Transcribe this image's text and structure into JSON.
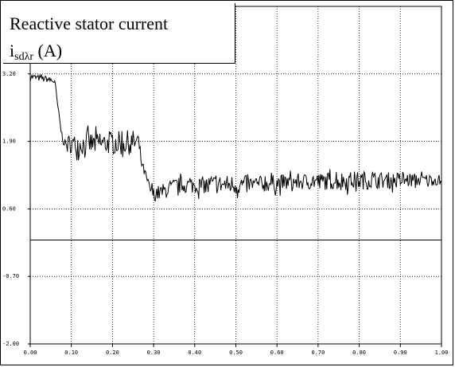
{
  "chart_data": {
    "type": "line",
    "title": "Reactive stator current",
    "ylabel_main": "i",
    "ylabel_sub": "sdλr",
    "ylabel_unit": " (A)",
    "y_exponent": "10",
    "ylim": [
      -2.0,
      4.5
    ],
    "xlim": [
      0.0,
      1.0
    ],
    "x_tick_labels": [
      "0.00",
      "0.10",
      "0.20",
      "0.30",
      "0.40",
      "0.50",
      "0.60",
      "0.70",
      "0.80",
      "0.90",
      "1.00"
    ],
    "y_tick_values": [
      3.2,
      1.9,
      0.6,
      -0.7,
      -2.0
    ],
    "y_tick_labels": [
      "3.20",
      "1.90",
      "0.60",
      "-0.70",
      "-2.00"
    ],
    "zero_line": 0.0,
    "grid": true,
    "series": [
      {
        "x": [
          0.0,
          0.02,
          0.04,
          0.06,
          0.065,
          0.07,
          0.075,
          0.08,
          0.09,
          0.1,
          0.12,
          0.14,
          0.16,
          0.18,
          0.2,
          0.22,
          0.24,
          0.26,
          0.265,
          0.27,
          0.28,
          0.29,
          0.3,
          0.32,
          0.34,
          0.36,
          0.38,
          0.4,
          0.45,
          0.5,
          0.55,
          0.6,
          0.65,
          0.7,
          0.75,
          0.8,
          0.85,
          0.9,
          0.95,
          1.0
        ],
        "y": [
          3.15,
          3.12,
          3.1,
          3.05,
          2.7,
          2.4,
          2.1,
          1.9,
          1.82,
          1.85,
          1.84,
          1.86,
          1.85,
          1.86,
          1.87,
          1.86,
          1.88,
          1.88,
          1.8,
          1.5,
          1.25,
          1.0,
          0.88,
          0.92,
          1.0,
          1.05,
          1.06,
          1.05,
          1.07,
          1.06,
          1.07,
          1.1,
          1.12,
          1.13,
          1.14,
          1.15,
          1.15,
          1.15,
          1.16,
          1.16
        ],
        "noise": [
          0.06,
          0.06,
          0.06,
          0.06,
          0.05,
          0.05,
          0.05,
          0.06,
          0.1,
          0.18,
          0.2,
          0.22,
          0.22,
          0.22,
          0.22,
          0.24,
          0.24,
          0.24,
          0.1,
          0.08,
          0.1,
          0.12,
          0.14,
          0.16,
          0.16,
          0.16,
          0.16,
          0.16,
          0.18,
          0.2,
          0.16,
          0.16,
          0.16,
          0.16,
          0.18,
          0.18,
          0.16,
          0.16,
          0.12,
          0.1
        ]
      }
    ]
  }
}
